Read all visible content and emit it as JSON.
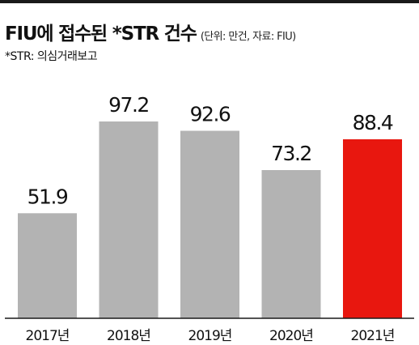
{
  "title": "FIU에 접수된 *STR 건수",
  "unit_note": "(단위: 만건, 자료: FIU)",
  "footnote": "*STR: 의심거래보고",
  "colors": {
    "bar_default": "#b3b3b3",
    "bar_highlight": "#e8170f",
    "text": "#111111",
    "rule": "#1a1a1a"
  },
  "chart_data": {
    "type": "bar",
    "title": "FIU에 접수된 *STR 건수",
    "categories": [
      "2017년",
      "2018년",
      "2019년",
      "2020년",
      "2021년"
    ],
    "values": [
      51.9,
      97.2,
      92.6,
      73.2,
      88.4
    ],
    "value_labels": [
      "51.9",
      "97.2",
      "92.6",
      "73.2",
      "88.4"
    ],
    "highlight_index": 4,
    "xlabel": "",
    "ylabel": "",
    "ylim": [
      0,
      100
    ],
    "grid": false,
    "legend": "none"
  }
}
